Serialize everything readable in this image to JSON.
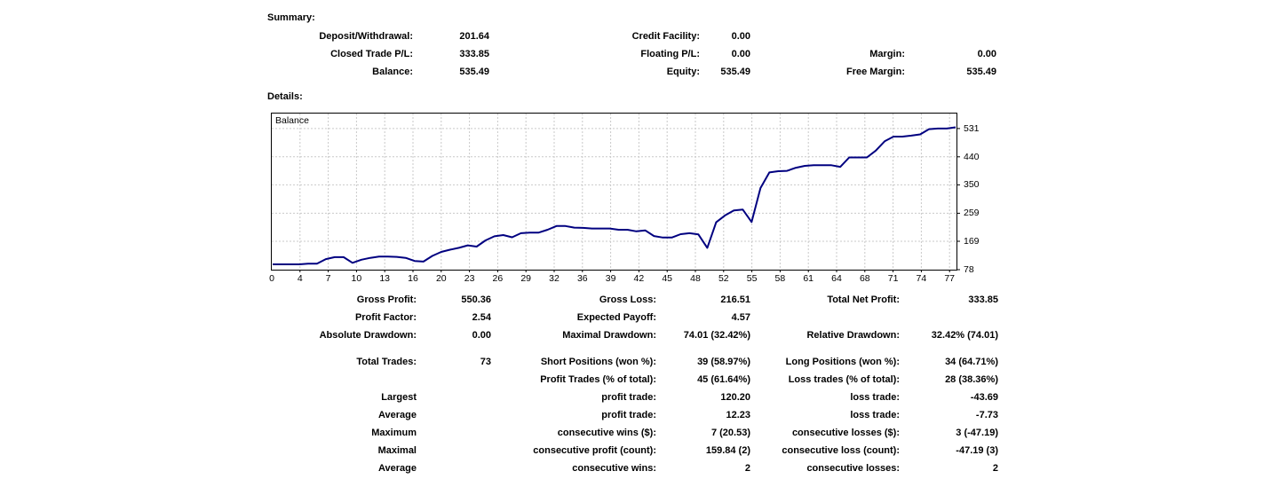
{
  "summary": {
    "title": "Summary:",
    "rows": [
      [
        {
          "label": "Deposit/Withdrawal:",
          "value": "201.64"
        },
        {
          "label": "Credit Facility:",
          "value": "0.00"
        },
        {
          "label": "",
          "value": ""
        }
      ],
      [
        {
          "label": "Closed Trade P/L:",
          "value": "333.85"
        },
        {
          "label": "Floating P/L:",
          "value": "0.00"
        },
        {
          "label": "Margin:",
          "value": "0.00"
        }
      ],
      [
        {
          "label": "Balance:",
          "value": "535.49"
        },
        {
          "label": "Equity:",
          "value": "535.49"
        },
        {
          "label": "Free Margin:",
          "value": "535.49"
        }
      ]
    ]
  },
  "details": {
    "title": "Details:"
  },
  "chart_data": {
    "type": "line",
    "title": "Balance",
    "legend": "Balance",
    "xlabel": "",
    "ylabel": "",
    "x_tick_labels": [
      "0",
      "4",
      "7",
      "10",
      "13",
      "16",
      "20",
      "23",
      "26",
      "29",
      "32",
      "36",
      "39",
      "42",
      "45",
      "48",
      "52",
      "55",
      "58",
      "61",
      "64",
      "68",
      "71",
      "74",
      "77"
    ],
    "y_ticks": [
      531,
      440,
      350,
      259,
      169,
      78
    ],
    "xlim": [
      0,
      77
    ],
    "ylim": [
      78,
      579
    ],
    "grid": true,
    "line_color": "#000080",
    "grid_color": "#c9c9c9",
    "x": [
      0,
      1,
      2,
      3,
      4,
      5,
      6,
      7,
      8,
      9,
      10,
      11,
      12,
      13,
      14,
      15,
      16,
      17,
      18,
      19,
      20,
      21,
      22,
      23,
      24,
      25,
      26,
      27,
      28,
      29,
      30,
      31,
      32,
      33,
      34,
      35,
      36,
      37,
      38,
      39,
      40,
      41,
      42,
      43,
      44,
      45,
      46,
      47,
      48,
      49,
      50,
      51,
      52,
      53,
      54,
      55,
      56,
      57,
      58,
      59,
      60,
      61,
      62,
      63,
      64,
      65,
      66,
      67,
      68,
      69,
      70,
      71,
      72,
      73,
      74,
      75,
      76,
      77
    ],
    "values": [
      95,
      95,
      95,
      95,
      97,
      97,
      112,
      118,
      118,
      100,
      110,
      116,
      120,
      120,
      119,
      116,
      106,
      104,
      122,
      135,
      142,
      148,
      156,
      152,
      172,
      185,
      189,
      182,
      195,
      197,
      197,
      206,
      218,
      218,
      213,
      212,
      210,
      210,
      210,
      206,
      206,
      201,
      204,
      186,
      181,
      181,
      192,
      195,
      191,
      148,
      230,
      252,
      268,
      271,
      231,
      340,
      390,
      394,
      395,
      405,
      411,
      413,
      413,
      413,
      408,
      438,
      438,
      438,
      460,
      490,
      505,
      505,
      508,
      512,
      529,
      531,
      531,
      535
    ]
  },
  "stats": {
    "rows": [
      [
        {
          "label": "Gross Profit:",
          "value": "550.36"
        },
        {
          "label": "Gross Loss:",
          "value": "216.51"
        },
        {
          "label": "Total Net Profit:",
          "value": "333.85"
        }
      ],
      [
        {
          "label": "Profit Factor:",
          "value": "2.54"
        },
        {
          "label": "Expected Payoff:",
          "value": "4.57"
        },
        {
          "label": "",
          "value": ""
        }
      ],
      [
        {
          "label": "Absolute Drawdown:",
          "value": "0.00"
        },
        {
          "label": "Maximal Drawdown:",
          "value": "74.01 (32.42%)"
        },
        {
          "label": "Relative Drawdown:",
          "value": "32.42% (74.01)"
        }
      ],
      [
        {
          "label": "Total Trades:",
          "value": "73"
        },
        {
          "label": "Short Positions (won %):",
          "value": "39 (58.97%)"
        },
        {
          "label": "Long Positions (won %):",
          "value": "34 (64.71%)"
        }
      ],
      [
        {
          "label": "",
          "value": ""
        },
        {
          "label": "Profit Trades (% of total):",
          "value": "45 (61.64%)"
        },
        {
          "label": "Loss trades (% of total):",
          "value": "28 (38.36%)"
        }
      ],
      [
        {
          "label": "Largest",
          "value": ""
        },
        {
          "label": "profit trade:",
          "value": "120.20"
        },
        {
          "label": "loss trade:",
          "value": "-43.69"
        }
      ],
      [
        {
          "label": "Average",
          "value": ""
        },
        {
          "label": "profit trade:",
          "value": "12.23"
        },
        {
          "label": "loss trade:",
          "value": "-7.73"
        }
      ],
      [
        {
          "label": "Maximum",
          "value": ""
        },
        {
          "label": "consecutive wins ($):",
          "value": "7 (20.53)"
        },
        {
          "label": "consecutive losses ($):",
          "value": "3 (-47.19)"
        }
      ],
      [
        {
          "label": "Maximal",
          "value": ""
        },
        {
          "label": "consecutive profit (count):",
          "value": "159.84 (2)"
        },
        {
          "label": "consecutive loss (count):",
          "value": "-47.19 (3)"
        }
      ],
      [
        {
          "label": "Average",
          "value": ""
        },
        {
          "label": "consecutive wins:",
          "value": "2"
        },
        {
          "label": "consecutive losses:",
          "value": "2"
        }
      ]
    ]
  }
}
